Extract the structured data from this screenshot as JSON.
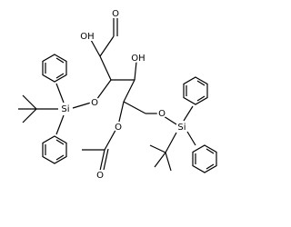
{
  "nodes": [
    {
      "label": "O"
    },
    {
      "label": "OH"
    },
    {
      "label": "O"
    },
    {
      "label": "Si"
    },
    {
      "label": "OH"
    },
    {
      "label": "O"
    },
    {
      "label": "O"
    },
    {
      "label": "O"
    },
    {
      "label": "Si"
    }
  ]
}
